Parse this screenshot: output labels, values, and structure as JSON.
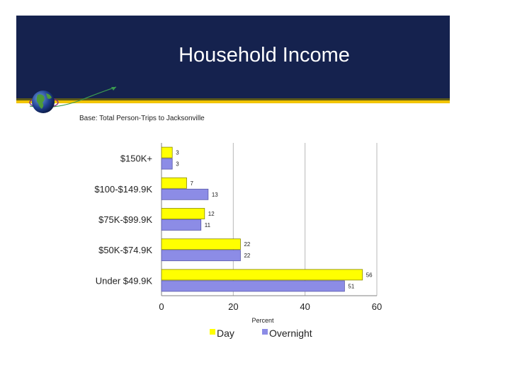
{
  "slide": {
    "title": "Household Income",
    "base_note": "Base: Total Person-Trips to Jacksonville"
  },
  "chart_data": {
    "type": "bar",
    "orientation": "horizontal",
    "categories": [
      "$150K+",
      "$100-$149.9K",
      "$75K-$99.9K",
      "$50K-$74.9K",
      "Under $49.9K"
    ],
    "series": [
      {
        "name": "Day",
        "values": [
          3,
          7,
          12,
          22,
          56
        ],
        "color": "#ffff00"
      },
      {
        "name": "Overnight",
        "values": [
          3,
          13,
          11,
          22,
          51
        ],
        "color": "#8c8ce6"
      }
    ],
    "xlabel": "Percent",
    "ylabel": "",
    "xlim": [
      0,
      60
    ],
    "xticks": [
      0,
      20,
      40,
      60
    ],
    "grid": true,
    "legend_position": "bottom"
  }
}
